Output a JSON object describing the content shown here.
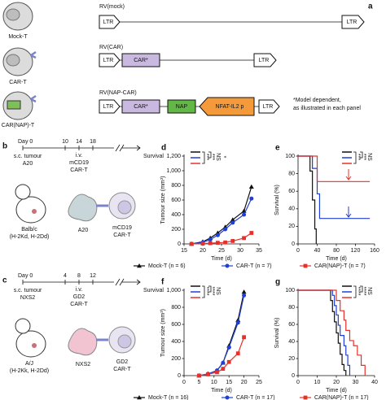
{
  "panels": {
    "a": {
      "label": "a",
      "rows": [
        {
          "vector": "RV(mock)",
          "cell": "Mock-T",
          "ltr_left": "LTR",
          "ltr_right": "LTR"
        },
        {
          "vector": "RV(CAR)",
          "cell": "CAR-T",
          "ltr_left": "LTR",
          "car": "CAR*",
          "ltr_right": "LTR"
        },
        {
          "vector": "RV(NAP-CAR)",
          "cell": "CAR(NAP)-T",
          "ltr_left": "LTR",
          "car": "CAR*",
          "nap": "NAP",
          "promoter": "NFAT-IL2 p",
          "ltr_right": "LTR"
        }
      ],
      "note_lines": [
        "*Model dependent,",
        "as illustrated in each panel"
      ]
    },
    "b": {
      "label": "b",
      "day0": "Day 0",
      "days": [
        "10",
        "14",
        "18"
      ],
      "injection": "s.c. tumour",
      "tumour": "A20",
      "route": "i.v.",
      "target": "mCD19",
      "cart": "CAR-T",
      "endpoint": "Survival",
      "mouse": "Balb/c",
      "haplotype": "(H-2Kd, H-2Dd)",
      "tumour_cell": "A20",
      "cart_cell_1": "mCD19",
      "cart_cell_2": "CAR-T"
    },
    "c": {
      "label": "c",
      "day0": "Day 0",
      "days": [
        "4",
        "8",
        "12"
      ],
      "injection": "s.c. tumour",
      "tumour": "NXS2",
      "route": "i.v.",
      "target": "GD2",
      "cart": "CAR-T",
      "endpoint": "Survival",
      "mouse": "A/J",
      "haplotype": "(H-2Kk, H-2Dd)",
      "tumour_cell": "NXS2",
      "cart_cell_1": "GD2",
      "cart_cell_2": "CAR-T"
    }
  },
  "chart_data": [
    {
      "type": "line",
      "panel": "d",
      "x_label": "Time (d)",
      "y_label": "Tumour size (mm³)",
      "xlim": [
        15,
        35
      ],
      "xticks": [
        15,
        20,
        25,
        30,
        35
      ],
      "ylim": [
        0,
        1200
      ],
      "yticks": [
        0,
        200,
        400,
        600,
        800,
        {
          "value": 1000,
          "label": "1,000"
        },
        {
          "value": 1200,
          "label": "1,200"
        }
      ],
      "x": [
        17,
        20,
        22,
        24,
        26,
        28,
        31,
        33
      ],
      "series": [
        {
          "name": "Mock-T (n = 6)",
          "color": "#111111",
          "marker": "triangle",
          "values": [
            0,
            30,
            80,
            150,
            230,
            330,
            450,
            780
          ]
        },
        {
          "name": "CAR-T (n = 7)",
          "color": "#1f3fd6",
          "marker": "circle",
          "values": [
            0,
            20,
            60,
            120,
            200,
            290,
            400,
            620
          ]
        },
        {
          "name": "CAR(NAP)-T (n = 7)",
          "color": "#e8302a",
          "marker": "square",
          "values": [
            0,
            5,
            10,
            15,
            20,
            40,
            80,
            150
          ]
        }
      ],
      "annotations": [
        "***",
        "***",
        "NS",
        "*"
      ]
    },
    {
      "type": "step",
      "panel": "e",
      "x_label": "Time (d)",
      "y_label": "Survival (%)",
      "xlim": [
        0,
        160
      ],
      "xticks": [
        0,
        40,
        80,
        120,
        160
      ],
      "ylim": [
        0,
        100
      ],
      "yticks": [
        0,
        20,
        40,
        60,
        80,
        100
      ],
      "series": [
        {
          "color": "#111111",
          "x": [
            0,
            25,
            30,
            35,
            38
          ],
          "values": [
            100,
            83,
            50,
            17,
            0
          ]
        },
        {
          "color": "#1f3fd6",
          "x": [
            0,
            30,
            40,
            45,
            150
          ],
          "values": [
            100,
            86,
            57,
            29,
            29
          ]
        },
        {
          "color": "#e8302a",
          "x": [
            0,
            40,
            150
          ],
          "values": [
            100,
            71,
            71
          ]
        }
      ],
      "annotations": [
        "***",
        "***",
        "NS"
      ]
    },
    {
      "type": "line",
      "panel": "f",
      "x_label": "Time (d)",
      "y_label": "Tumour size (mm³)",
      "xlim": [
        0,
        25
      ],
      "xticks": [
        0,
        5,
        10,
        15,
        20,
        25
      ],
      "ylim": [
        0,
        1000
      ],
      "yticks": [
        0,
        200,
        400,
        600,
        800,
        {
          "value": 1000,
          "label": "1,000"
        }
      ],
      "x": [
        5,
        8,
        11,
        13,
        15,
        18,
        20
      ],
      "series": [
        {
          "name": "Mock-T (n = 16)",
          "color": "#111111",
          "marker": "triangle",
          "values": [
            0,
            20,
            60,
            150,
            350,
            650,
            980
          ]
        },
        {
          "name": "CAR-T (n = 17)",
          "color": "#1f3fd6",
          "marker": "circle",
          "values": [
            0,
            20,
            60,
            150,
            330,
            620,
            940
          ]
        },
        {
          "name": "CAR(NAP)-T (n = 17)",
          "color": "#e8302a",
          "marker": "square",
          "values": [
            0,
            15,
            40,
            80,
            160,
            260,
            450
          ]
        }
      ],
      "annotations": [
        "****",
        "****",
        "NS"
      ]
    },
    {
      "type": "step",
      "panel": "g",
      "x_label": "Time (d)",
      "y_label": "Survival (%)",
      "xlim": [
        0,
        40
      ],
      "xticks": [
        0,
        10,
        20,
        30,
        40
      ],
      "ylim": [
        0,
        100
      ],
      "yticks": [
        0,
        20,
        40,
        60,
        80,
        100
      ],
      "series": [
        {
          "color": "#111111",
          "x": [
            0,
            17,
            18,
            19,
            20,
            21,
            22,
            23,
            24,
            25
          ],
          "values": [
            100,
            88,
            75,
            63,
            50,
            38,
            25,
            13,
            6,
            0
          ]
        },
        {
          "color": "#1f3fd6",
          "x": [
            0,
            18,
            19,
            20,
            21,
            22,
            24,
            25,
            26,
            27
          ],
          "values": [
            100,
            94,
            82,
            71,
            59,
            47,
            35,
            24,
            12,
            0
          ]
        },
        {
          "color": "#e8302a",
          "x": [
            0,
            20,
            22,
            24,
            25,
            27,
            29,
            31,
            33,
            35
          ],
          "values": [
            100,
            88,
            76,
            65,
            53,
            41,
            35,
            24,
            12,
            0
          ]
        }
      ],
      "annotations": [
        "****",
        "****",
        "NS"
      ]
    }
  ]
}
